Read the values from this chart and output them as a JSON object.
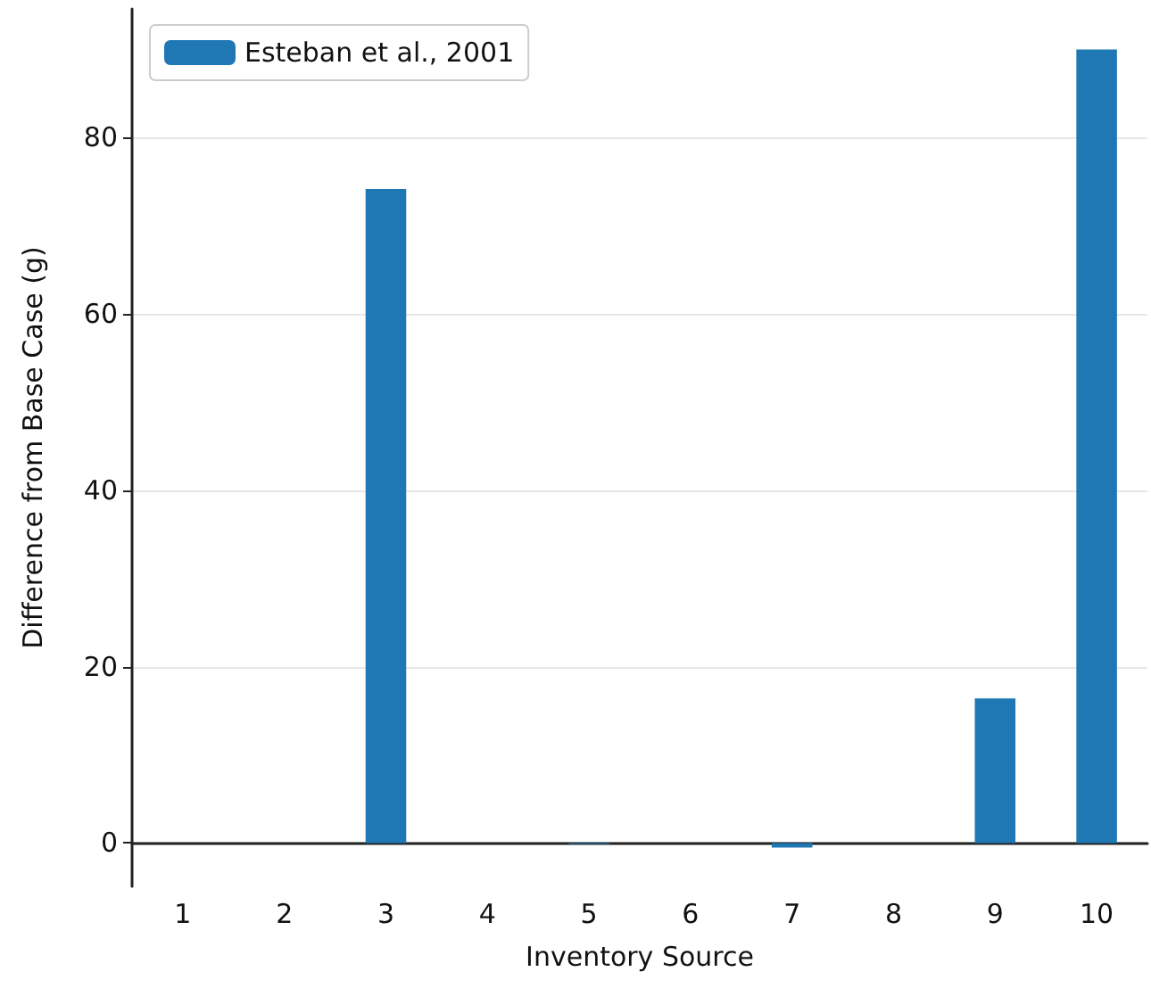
{
  "chart_data": {
    "type": "bar",
    "xlabel": "Inventory Source",
    "ylabel": "Difference from Base Case (g)",
    "categories": [
      "1",
      "2",
      "3",
      "4",
      "5",
      "6",
      "7",
      "8",
      "9",
      "10"
    ],
    "series": [
      {
        "name": "Esteban et al., 2001",
        "color": "#1f77b4",
        "values": [
          0,
          0,
          74.1,
          0,
          -0.1,
          0,
          -0.5,
          0,
          16.4,
          89.9
        ]
      }
    ],
    "ylim": [
      -4.9,
      94.5
    ],
    "yticks": [
      0,
      20,
      40,
      60,
      80
    ],
    "grid": "y",
    "legend": "top left"
  }
}
